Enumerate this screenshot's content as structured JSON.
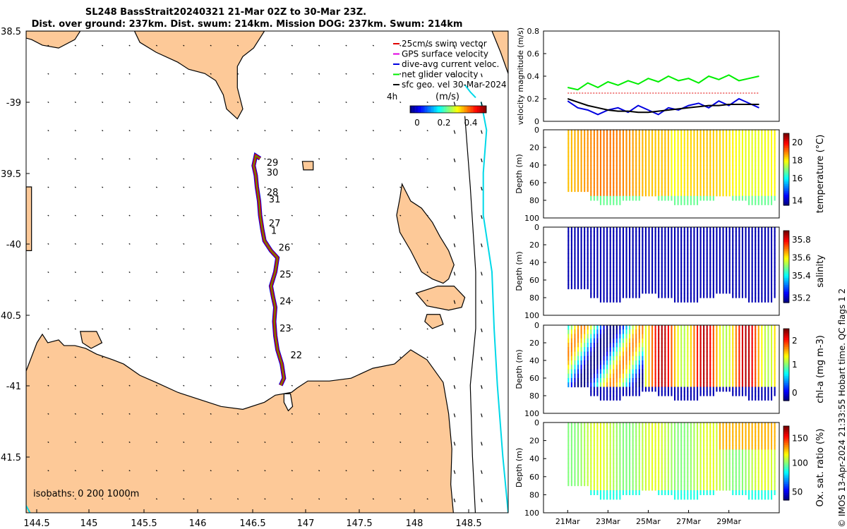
{
  "header": {
    "title_line1": "SL248 BassStrait20240321 21-Mar 02Z to 30-Mar 23Z.",
    "title_line2": "Dist. over ground: 237km. Dist. swum: 214km. Mission DOG: 237km. Swum: 214km"
  },
  "credit": "© IMOS 13-Apr-2024 21:33:55 Hobart time. QC flags 1  2",
  "colors": {
    "land": "#fdc998",
    "track": "#e00000",
    "glider_vel": "#00ee00",
    "dive_avg": "#0000e0",
    "gps": "#e000e0",
    "geo_vel": "#000000",
    "isobath": "#00d8e8"
  },
  "map": {
    "lon_ticks": [
      "144.5",
      "145",
      "145.5",
      "146",
      "146.5",
      "147",
      "147.5",
      "148",
      "148.5"
    ],
    "lat_ticks": [
      "38.5",
      "-39",
      "39.5",
      "-40",
      "40.5",
      "-41",
      "41.5"
    ],
    "isobaths_label": "isobaths: 0   200  1000m",
    "legend": [
      {
        "label": "25cm/s swim vector",
        "color": "#e00000",
        "marker": "^"
      },
      {
        "label": "GPS surface velocity",
        "color": "#e000e0",
        "marker": "-"
      },
      {
        "label": "dive-avg current veloc.",
        "color": "#0000e0",
        "marker": "-"
      },
      {
        "label": "net glider velocity",
        "color": "#00ee00",
        "marker": "^"
      },
      {
        "label": "sfc geo. vel 30-Mar-2024",
        "color": "#000000",
        "marker": "-"
      }
    ],
    "legend_time": "4h",
    "colorbar": {
      "label": "(m/s)",
      "ticks": [
        "0",
        "0.2",
        "0.4"
      ]
    },
    "day_labels": [
      {
        "day": "29",
        "lon": 146.62,
        "lat": -39.45
      },
      {
        "day": "30",
        "lon": 146.62,
        "lat": -39.52
      },
      {
        "day": "28",
        "lon": 146.62,
        "lat": -39.66
      },
      {
        "day": "31",
        "lon": 146.64,
        "lat": -39.71
      },
      {
        "day": "27",
        "lon": 146.64,
        "lat": -39.88
      },
      {
        "day": "1",
        "lon": 146.66,
        "lat": -39.93
      },
      {
        "day": "26",
        "lon": 146.73,
        "lat": -40.05
      },
      {
        "day": "25",
        "lon": 146.74,
        "lat": -40.24
      },
      {
        "day": "24",
        "lon": 146.74,
        "lat": -40.43
      },
      {
        "day": "23",
        "lon": 146.74,
        "lat": -40.62
      },
      {
        "day": "22",
        "lon": 146.84,
        "lat": -40.81
      }
    ]
  },
  "chart_data": [
    {
      "type": "line",
      "title": "",
      "ylabel": "velocity magnitude (m/s)",
      "ylim": [
        0,
        0.8
      ],
      "yticks": [
        "0",
        "0.2",
        "0.4",
        "0.6",
        "0.8"
      ],
      "x_days": [
        21,
        21.5,
        22,
        22.5,
        23,
        23.5,
        24,
        24.5,
        25,
        25.5,
        26,
        26.5,
        27,
        27.5,
        28,
        28.5,
        29,
        29.5,
        30,
        30.5
      ],
      "series": [
        {
          "name": "net glider velocity",
          "color": "#00ee00",
          "values": [
            0.3,
            0.28,
            0.34,
            0.3,
            0.35,
            0.32,
            0.36,
            0.33,
            0.38,
            0.35,
            0.4,
            0.36,
            0.38,
            0.34,
            0.4,
            0.37,
            0.41,
            0.36,
            0.38,
            0.4
          ]
        },
        {
          "name": "dive-avg current veloc.",
          "color": "#0000e0",
          "values": [
            0.18,
            0.12,
            0.1,
            0.06,
            0.1,
            0.12,
            0.08,
            0.14,
            0.1,
            0.06,
            0.12,
            0.1,
            0.14,
            0.16,
            0.12,
            0.18,
            0.14,
            0.2,
            0.16,
            0.12
          ]
        },
        {
          "name": "sfc geo. vel",
          "color": "#000000",
          "values": [
            0.2,
            0.17,
            0.14,
            0.12,
            0.1,
            0.09,
            0.09,
            0.08,
            0.08,
            0.09,
            0.1,
            0.11,
            0.12,
            0.13,
            0.14,
            0.14,
            0.15,
            0.15,
            0.15,
            0.15
          ]
        },
        {
          "name": "25cm/s swim reference",
          "color": "#e00000",
          "values": [
            0.25,
            0.25,
            0.25,
            0.25,
            0.25,
            0.25,
            0.25,
            0.25,
            0.25,
            0.25,
            0.25,
            0.25,
            0.25,
            0.25,
            0.25,
            0.25,
            0.25,
            0.25,
            0.25,
            0.25
          ]
        }
      ]
    },
    {
      "type": "heatmap",
      "ylabel": "Depth (m)",
      "colorbar_label": "temperature (°C)",
      "colorbar_ticks": [
        "14",
        "16",
        "18",
        "20"
      ],
      "yticks": [
        "0",
        "20",
        "40",
        "60",
        "80",
        "100"
      ]
    },
    {
      "type": "heatmap",
      "ylabel": "Depth (m)",
      "colorbar_label": "salinity",
      "colorbar_ticks": [
        "35.2",
        "35.4",
        "35.6",
        "35.8"
      ],
      "yticks": [
        "0",
        "20",
        "40",
        "60",
        "80",
        "100"
      ]
    },
    {
      "type": "heatmap",
      "ylabel": "Depth (m)",
      "colorbar_label": "chl-a (mg m-3)",
      "colorbar_ticks": [
        "0",
        "1",
        "2"
      ],
      "yticks": [
        "0",
        "20",
        "40",
        "60",
        "80",
        "100"
      ]
    },
    {
      "type": "heatmap",
      "ylabel": "Depth (m)",
      "colorbar_label": "Ox. sat. ratio (%)",
      "colorbar_ticks": [
        "50",
        "100",
        "150"
      ],
      "yticks": [
        "0",
        "20",
        "40",
        "60",
        "80",
        "100"
      ],
      "xticks": [
        "21Mar",
        "23Mar",
        "25Mar",
        "27Mar",
        "29Mar"
      ]
    }
  ]
}
